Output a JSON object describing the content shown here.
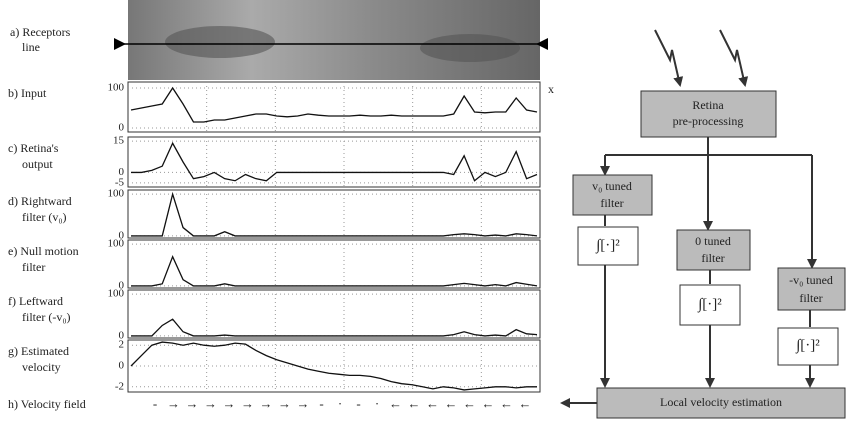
{
  "figure": {
    "receptors": {
      "label": [
        "a) Receptors",
        "line"
      ],
      "axis_label": "x"
    },
    "panels": [
      {
        "label": [
          "b) Input"
        ],
        "ylim": [
          -10,
          115
        ],
        "yticks": [
          100,
          0
        ],
        "values": [
          45,
          50,
          55,
          60,
          100,
          60,
          15,
          15,
          20,
          20,
          25,
          30,
          35,
          35,
          30,
          28,
          30,
          35,
          32,
          30,
          30,
          30,
          32,
          30,
          30,
          32,
          30,
          30,
          30,
          30,
          30,
          35,
          80,
          40,
          38,
          40,
          40,
          75,
          45,
          40
        ]
      },
      {
        "label": [
          "c) Retina's",
          "output"
        ],
        "ylim": [
          -7,
          17
        ],
        "yticks": [
          15,
          0,
          -5
        ],
        "values": [
          0,
          0,
          1,
          3,
          14,
          5,
          -3,
          -2,
          0,
          -3,
          -4,
          -1,
          -3,
          -4,
          0,
          0,
          0,
          0,
          0,
          0,
          0,
          0,
          0,
          0,
          0,
          0,
          0,
          0,
          0,
          0,
          0,
          -1,
          8,
          -4,
          0,
          -2,
          0,
          10,
          -3,
          -1
        ]
      },
      {
        "label": [
          "d) Rightward",
          "filter (v₀)"
        ],
        "ylim": [
          -5,
          110
        ],
        "yticks": [
          100,
          0
        ],
        "values": [
          0,
          0,
          0,
          0,
          100,
          20,
          0,
          0,
          0,
          10,
          0,
          0,
          0,
          0,
          0,
          0,
          0,
          0,
          0,
          0,
          0,
          0,
          0,
          0,
          0,
          0,
          0,
          0,
          0,
          0,
          0,
          3,
          5,
          3,
          0,
          2,
          0,
          5,
          3,
          0
        ]
      },
      {
        "label": [
          "e) Null motion",
          "filter"
        ],
        "ylim": [
          -5,
          110
        ],
        "yticks": [
          100,
          0
        ],
        "values": [
          0,
          0,
          0,
          5,
          70,
          15,
          0,
          0,
          0,
          5,
          0,
          0,
          0,
          0,
          0,
          0,
          0,
          0,
          0,
          0,
          0,
          0,
          0,
          0,
          0,
          0,
          0,
          0,
          0,
          0,
          0,
          3,
          6,
          3,
          0,
          3,
          0,
          8,
          4,
          0
        ]
      },
      {
        "label": [
          "f) Leftward",
          "filter (-v₀)"
        ],
        "ylim": [
          -5,
          110
        ],
        "yticks": [
          100,
          0
        ],
        "values": [
          0,
          0,
          0,
          25,
          40,
          10,
          0,
          0,
          0,
          2,
          0,
          0,
          0,
          0,
          0,
          0,
          0,
          0,
          0,
          0,
          0,
          0,
          0,
          0,
          0,
          0,
          0,
          0,
          0,
          0,
          0,
          3,
          10,
          3,
          0,
          2,
          0,
          15,
          5,
          3
        ]
      },
      {
        "label": [
          "g) Estimated",
          "velocity"
        ],
        "ylim": [
          -2.5,
          2.5
        ],
        "yticks": [
          2,
          0,
          -2
        ],
        "values": [
          0,
          1,
          2,
          2.3,
          2.2,
          2,
          2.2,
          2,
          1.9,
          2,
          2.2,
          2.1,
          1.5,
          1,
          0.6,
          0.3,
          0,
          -0.3,
          -0.5,
          -0.7,
          -0.8,
          -0.9,
          -0.9,
          -1,
          -1.2,
          -1.5,
          -1.7,
          -1.8,
          -2,
          -2.2,
          -2,
          -2.1,
          -2.3,
          -2.2,
          -2.1,
          -2,
          -2,
          -2.1,
          -2,
          -2
        ]
      }
    ],
    "velocity_field": {
      "label": "h) Velocity field",
      "symbols": [
        "-",
        "→",
        "→",
        "→",
        "→",
        "→",
        "→",
        "→",
        "→",
        "-",
        "·",
        "-",
        "·",
        "←",
        "←",
        "←",
        "←",
        "←",
        "←",
        "←",
        "←"
      ]
    }
  },
  "diagram": {
    "retina": [
      "Retina",
      "pre-processing"
    ],
    "filters": [
      [
        "v₀ tuned",
        "filter"
      ],
      [
        "0 tuned",
        "filter"
      ],
      [
        "-v₀ tuned",
        "filter"
      ]
    ],
    "squares": [
      "∫[·]²",
      "∫[·]²",
      "∫[·]²"
    ],
    "output": "Local velocity estimation"
  }
}
